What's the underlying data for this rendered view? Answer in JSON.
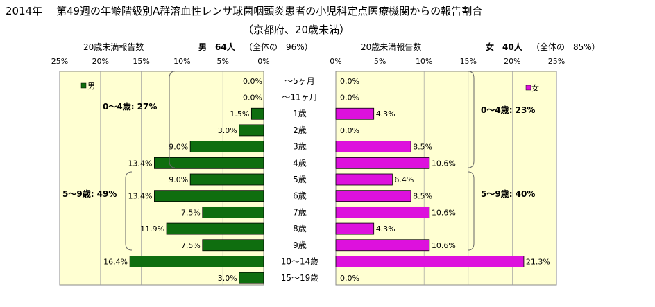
{
  "title": {
    "line1": "2014年　 第49週の年齢階級別A群溶血性レンサ球菌咽頭炎患者の小児科定点医療機関からの報告割合",
    "line2": "（京都府、20歳未満）"
  },
  "male_header": {
    "sub": "20歳未満報告数",
    "sex_count": "男　64人",
    "share": "（全体の　96%）"
  },
  "female_header": {
    "sub": "20歳未満報告数",
    "sex_count": "女　40人",
    "share": "（全体の　85%）"
  },
  "colors": {
    "male": "#0f6e0f",
    "female": "#dd11dd",
    "plot_bg": "#ffffd2",
    "grid": "#a0a0a0"
  },
  "chart_data": {
    "type": "bar",
    "orientation": "horizontal-population-pyramid",
    "categories": [
      "～5ヶ月",
      "～11ヶ月",
      "1歳",
      "2歳",
      "3歳",
      "4歳",
      "5歳",
      "6歳",
      "7歳",
      "8歳",
      "9歳",
      "10～14歳",
      "15～19歳"
    ],
    "xlim": [
      0,
      25
    ],
    "male_ticks": [
      "25%",
      "20%",
      "15%",
      "10%",
      "5%",
      "0%"
    ],
    "female_ticks": [
      "0%",
      "5%",
      "10%",
      "15%",
      "20%",
      "25%"
    ],
    "grid": true,
    "series": [
      {
        "name": "男",
        "values": [
          0.0,
          0.0,
          1.5,
          3.0,
          9.0,
          13.4,
          9.0,
          13.4,
          7.5,
          11.9,
          7.5,
          16.4,
          3.0
        ],
        "labels": [
          "0.0%",
          "0.0%",
          "1.5%",
          "3.0%",
          "9.0%",
          "13.4%",
          "9.0%",
          "13.4%",
          "7.5%",
          "11.9%",
          "7.5%",
          "16.4%",
          "3.0%"
        ]
      },
      {
        "name": "女",
        "values": [
          0.0,
          0.0,
          4.3,
          0.0,
          8.5,
          10.6,
          6.4,
          8.5,
          10.6,
          4.3,
          10.6,
          21.3,
          0.0
        ],
        "labels": [
          "0.0%",
          "0.0%",
          "4.3%",
          "0.0%",
          "8.5%",
          "10.6%",
          "6.4%",
          "8.5%",
          "10.6%",
          "4.3%",
          "10.6%",
          "21.3%",
          "0.0%"
        ]
      }
    ],
    "annotations": {
      "male_0_4": "0～4歳: 27%",
      "male_5_9": "5～9歳: 49%",
      "female_0_4": "0～4歳: 23%",
      "female_5_9": "5～9歳: 40%"
    }
  }
}
